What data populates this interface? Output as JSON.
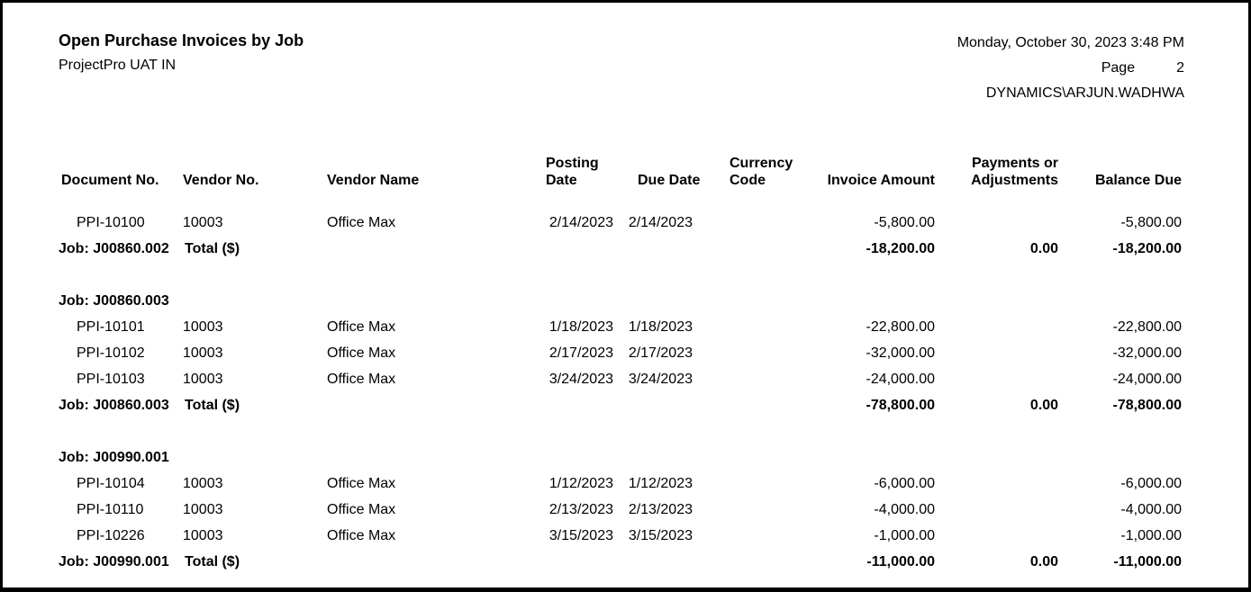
{
  "page": {
    "title": "Open Purchase Invoices by Job",
    "company": "ProjectPro UAT IN",
    "datetime": "Monday, October 30, 2023 3:48 PM",
    "page_label": "Page",
    "page_number": "2",
    "user": "DYNAMICS\\ARJUN.WADHWA"
  },
  "table": {
    "columns": [
      {
        "id": "document_no",
        "label": "Document No."
      },
      {
        "id": "vendor_no",
        "label": "Vendor No."
      },
      {
        "id": "vendor_name",
        "label": "Vendor Name"
      },
      {
        "id": "posting_date",
        "label": "Posting\nDate"
      },
      {
        "id": "due_date",
        "label": "Due Date"
      },
      {
        "id": "currency_code",
        "label": "Currency\nCode"
      },
      {
        "id": "invoice_amount",
        "label": "Invoice Amount"
      },
      {
        "id": "payments_or_adjustments",
        "label": "Payments or\nAdjustments"
      },
      {
        "id": "balance_due",
        "label": "Balance Due"
      }
    ],
    "rows": [
      {
        "type": "data",
        "document_no": "PPI-10100",
        "vendor_no": "10003",
        "vendor_name": "Office Max",
        "posting_date": "2/14/2023",
        "due_date": "2/14/2023",
        "currency_code": "",
        "invoice_amount": "-5,800.00",
        "payments_or_adjustments": "",
        "balance_due": "-5,800.00"
      },
      {
        "type": "total",
        "job_label": "Job: J00860.002",
        "total_label": "Total ($)",
        "invoice_amount": "-18,200.00",
        "payments_or_adjustments": "0.00",
        "balance_due": "-18,200.00"
      },
      {
        "type": "spacer"
      },
      {
        "type": "job_header",
        "job_label": "Job: J00860.003"
      },
      {
        "type": "data",
        "document_no": "PPI-10101",
        "vendor_no": "10003",
        "vendor_name": "Office Max",
        "posting_date": "1/18/2023",
        "due_date": "1/18/2023",
        "currency_code": "",
        "invoice_amount": "-22,800.00",
        "payments_or_adjustments": "",
        "balance_due": "-22,800.00"
      },
      {
        "type": "data",
        "document_no": "PPI-10102",
        "vendor_no": "10003",
        "vendor_name": "Office Max",
        "posting_date": "2/17/2023",
        "due_date": "2/17/2023",
        "currency_code": "",
        "invoice_amount": "-32,000.00",
        "payments_or_adjustments": "",
        "balance_due": "-32,000.00"
      },
      {
        "type": "data",
        "document_no": "PPI-10103",
        "vendor_no": "10003",
        "vendor_name": "Office Max",
        "posting_date": "3/24/2023",
        "due_date": "3/24/2023",
        "currency_code": "",
        "invoice_amount": "-24,000.00",
        "payments_or_adjustments": "",
        "balance_due": "-24,000.00"
      },
      {
        "type": "total",
        "job_label": "Job: J00860.003",
        "total_label": "Total ($)",
        "invoice_amount": "-78,800.00",
        "payments_or_adjustments": "0.00",
        "balance_due": "-78,800.00"
      },
      {
        "type": "spacer"
      },
      {
        "type": "job_header",
        "job_label": "Job: J00990.001"
      },
      {
        "type": "data",
        "document_no": "PPI-10104",
        "vendor_no": "10003",
        "vendor_name": "Office Max",
        "posting_date": "1/12/2023",
        "due_date": "1/12/2023",
        "currency_code": "",
        "invoice_amount": "-6,000.00",
        "payments_or_adjustments": "",
        "balance_due": "-6,000.00"
      },
      {
        "type": "data",
        "document_no": "PPI-10110",
        "vendor_no": "10003",
        "vendor_name": "Office Max",
        "posting_date": "2/13/2023",
        "due_date": "2/13/2023",
        "currency_code": "",
        "invoice_amount": "-4,000.00",
        "payments_or_adjustments": "",
        "balance_due": "-4,000.00"
      },
      {
        "type": "data",
        "document_no": "PPI-10226",
        "vendor_no": "10003",
        "vendor_name": "Office Max",
        "posting_date": "3/15/2023",
        "due_date": "3/15/2023",
        "currency_code": "",
        "invoice_amount": "-1,000.00",
        "payments_or_adjustments": "",
        "balance_due": "-1,000.00"
      },
      {
        "type": "total",
        "job_label": "Job: J00990.001",
        "total_label": "Total ($)",
        "invoice_amount": "-11,000.00",
        "payments_or_adjustments": "0.00",
        "balance_due": "-11,000.00"
      }
    ]
  }
}
